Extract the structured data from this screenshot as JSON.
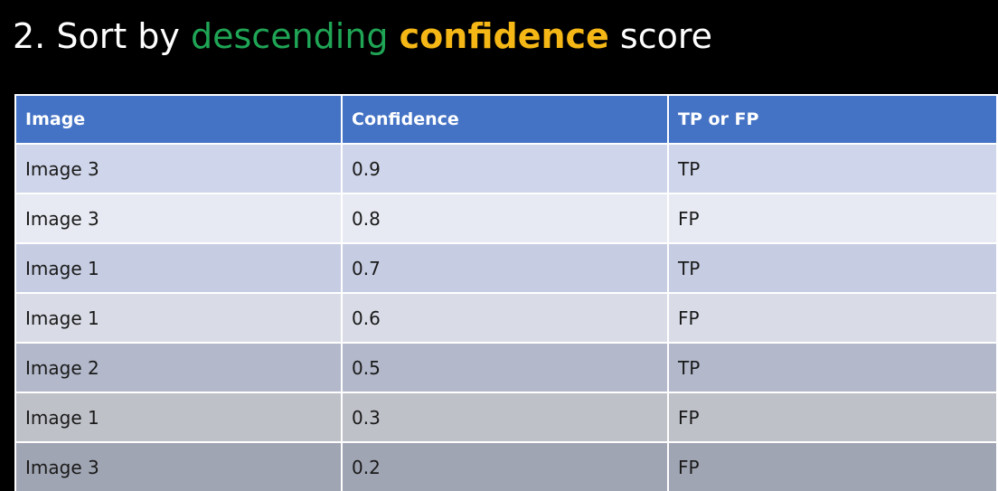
{
  "title": {
    "prefix": "2. Sort by ",
    "highlight_green": "descending",
    "space": " ",
    "highlight_orange": "confidence",
    "suffix": " score",
    "colors": {
      "green": "#1fa555",
      "orange": "#f5b716",
      "text": "#ffffff"
    }
  },
  "table": {
    "header_color": "#4472c4",
    "columns": [
      "Image",
      "Confidence",
      "TP or FP"
    ],
    "rows": [
      [
        "Image 3",
        "0.9",
        "TP"
      ],
      [
        "Image 3",
        "0.8",
        "FP"
      ],
      [
        "Image 1",
        "0.7",
        "TP"
      ],
      [
        "Image 1",
        "0.6",
        "FP"
      ],
      [
        "Image 2",
        "0.5",
        "TP"
      ],
      [
        "Image 1",
        "0.3",
        "FP"
      ],
      [
        "Image 3",
        "0.2",
        "FP"
      ]
    ]
  }
}
